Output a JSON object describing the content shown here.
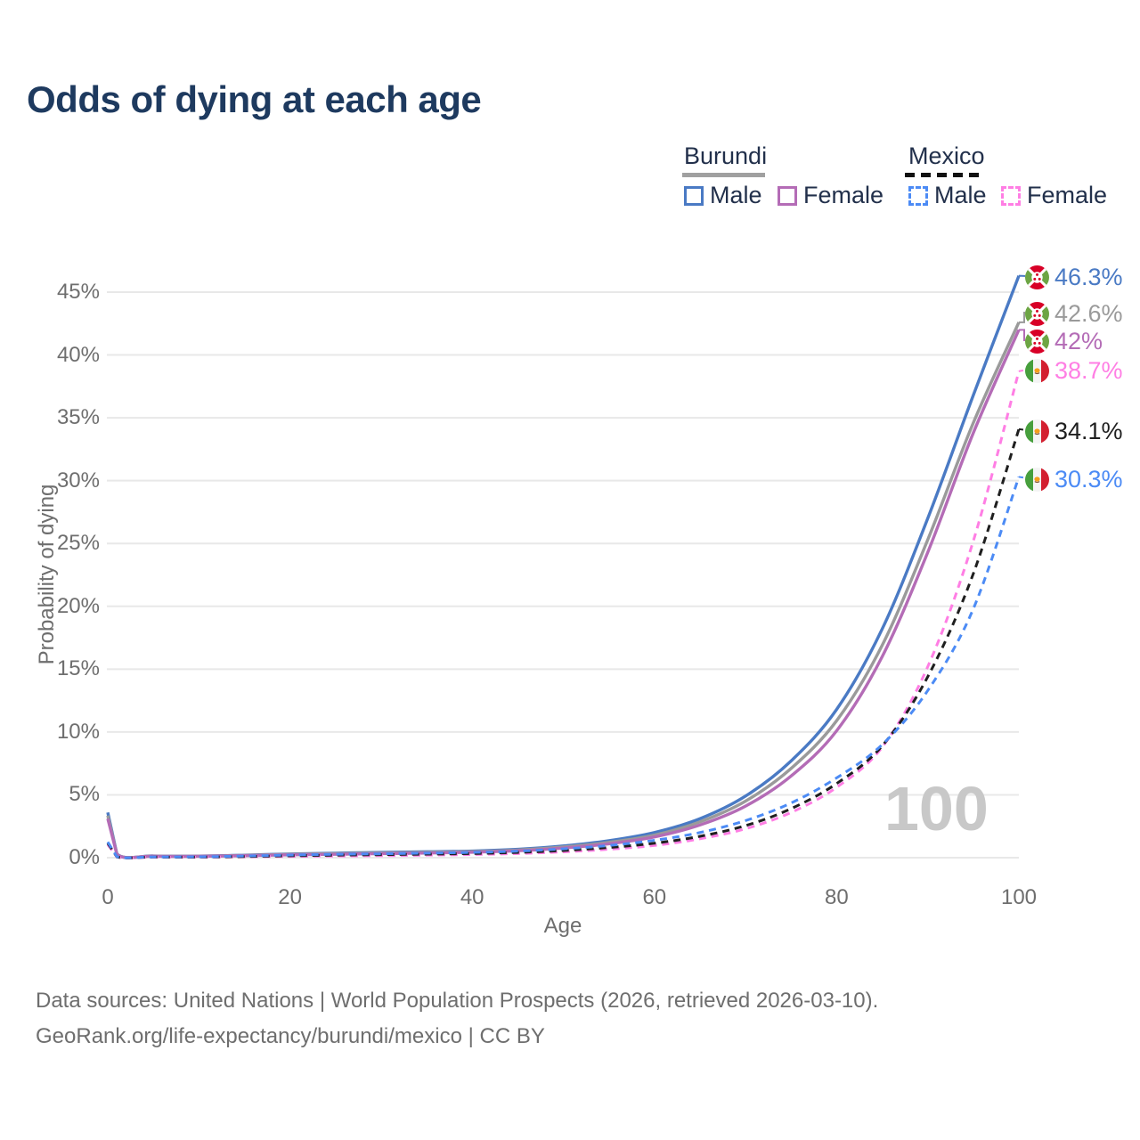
{
  "title": "Odds of dying at each age",
  "legend": {
    "groups": [
      {
        "country": "Burundi",
        "line_style": "solid",
        "items": [
          {
            "label": "Male",
            "color": "#4a7ac4"
          },
          {
            "label": "Female",
            "color": "#b46cb6"
          }
        ]
      },
      {
        "country": "Mexico",
        "line_style": "dashed",
        "items": [
          {
            "label": "Male",
            "color": "#4c8bf5"
          },
          {
            "label": "Female",
            "color": "#ff7ee4"
          }
        ]
      }
    ]
  },
  "axes": {
    "y": {
      "label": "Probability of dying",
      "ticks": [
        "0%",
        "5%",
        "10%",
        "15%",
        "20%",
        "25%",
        "30%",
        "35%",
        "40%",
        "45%"
      ]
    },
    "x": {
      "label": "Age",
      "ticks": [
        "0",
        "20",
        "40",
        "60",
        "80",
        "100"
      ]
    }
  },
  "watermark": "100",
  "footer": {
    "line1": "Data sources: United Nations | World Population Prospects (2026, retrieved 2026-03-10).",
    "line2": "GeoRank.org/life-expectancy/burundi/mexico | CC BY"
  },
  "chart_data": {
    "type": "line",
    "title": "Odds of dying at each age",
    "xlabel": "Age",
    "ylabel": "Probability of dying",
    "xlim": [
      0,
      100
    ],
    "ylim_pct": [
      0,
      47
    ],
    "grid": "horizontal",
    "legend_position": "top-right",
    "y_gridlines_pct": [
      0,
      5,
      10,
      15,
      20,
      25,
      30,
      35,
      40,
      45
    ],
    "x_ticks": [
      0,
      20,
      40,
      60,
      80,
      100
    ],
    "series": [
      {
        "name": "Burundi male",
        "country": "burundi",
        "sex": "male",
        "color": "#4a7ac4",
        "dash": false,
        "end_label": "46.3%",
        "points": [
          [
            0,
            3.6
          ],
          [
            1,
            0.3
          ],
          [
            5,
            0.14
          ],
          [
            10,
            0.13
          ],
          [
            15,
            0.2
          ],
          [
            20,
            0.3
          ],
          [
            25,
            0.36
          ],
          [
            30,
            0.42
          ],
          [
            35,
            0.47
          ],
          [
            40,
            0.53
          ],
          [
            45,
            0.67
          ],
          [
            50,
            0.93
          ],
          [
            55,
            1.35
          ],
          [
            60,
            2.0
          ],
          [
            65,
            3.1
          ],
          [
            70,
            4.9
          ],
          [
            75,
            7.7
          ],
          [
            80,
            11.8
          ],
          [
            85,
            18.2
          ],
          [
            90,
            27.0
          ],
          [
            95,
            36.8
          ],
          [
            100,
            46.3
          ]
        ]
      },
      {
        "name": "Burundi both sexes",
        "country": "burundi",
        "sex": "both",
        "color": "#9a9a9a",
        "dash": false,
        "end_label": "42.6%",
        "points": [
          [
            0,
            3.35
          ],
          [
            1,
            0.28
          ],
          [
            5,
            0.13
          ],
          [
            10,
            0.12
          ],
          [
            15,
            0.18
          ],
          [
            20,
            0.27
          ],
          [
            25,
            0.32
          ],
          [
            30,
            0.37
          ],
          [
            35,
            0.42
          ],
          [
            40,
            0.48
          ],
          [
            45,
            0.61
          ],
          [
            50,
            0.85
          ],
          [
            55,
            1.22
          ],
          [
            60,
            1.8
          ],
          [
            65,
            2.85
          ],
          [
            70,
            4.5
          ],
          [
            75,
            7.1
          ],
          [
            80,
            10.9
          ],
          [
            85,
            16.9
          ],
          [
            90,
            25.3
          ],
          [
            95,
            34.6
          ],
          [
            100,
            42.6
          ]
        ]
      },
      {
        "name": "Burundi female",
        "country": "burundi",
        "sex": "female",
        "color": "#b46cb6",
        "dash": false,
        "end_label": "42%",
        "points": [
          [
            0,
            3.1
          ],
          [
            1,
            0.26
          ],
          [
            5,
            0.12
          ],
          [
            10,
            0.11
          ],
          [
            15,
            0.16
          ],
          [
            20,
            0.23
          ],
          [
            25,
            0.27
          ],
          [
            30,
            0.32
          ],
          [
            35,
            0.37
          ],
          [
            40,
            0.43
          ],
          [
            45,
            0.55
          ],
          [
            50,
            0.77
          ],
          [
            55,
            1.1
          ],
          [
            60,
            1.65
          ],
          [
            65,
            2.6
          ],
          [
            70,
            4.1
          ],
          [
            75,
            6.5
          ],
          [
            80,
            10.1
          ],
          [
            85,
            16.0
          ],
          [
            90,
            24.3
          ],
          [
            95,
            33.8
          ],
          [
            100,
            42.0
          ]
        ]
      },
      {
        "name": "Mexico female",
        "country": "mexico",
        "sex": "female",
        "color": "#ff7ee4",
        "dash": true,
        "end_label": "38.7%",
        "points": [
          [
            0,
            1.05
          ],
          [
            1,
            0.06
          ],
          [
            5,
            0.04
          ],
          [
            10,
            0.04
          ],
          [
            15,
            0.07
          ],
          [
            20,
            0.1
          ],
          [
            25,
            0.13
          ],
          [
            30,
            0.16
          ],
          [
            35,
            0.2
          ],
          [
            40,
            0.25
          ],
          [
            45,
            0.33
          ],
          [
            50,
            0.46
          ],
          [
            55,
            0.67
          ],
          [
            60,
            0.97
          ],
          [
            65,
            1.5
          ],
          [
            70,
            2.3
          ],
          [
            75,
            3.6
          ],
          [
            80,
            5.6
          ],
          [
            85,
            8.8
          ],
          [
            90,
            15.2
          ],
          [
            95,
            25.2
          ],
          [
            100,
            38.7
          ]
        ]
      },
      {
        "name": "Mexico both sexes",
        "country": "mexico",
        "sex": "both",
        "color": "#1f1f1f",
        "dash": true,
        "end_label": "34.1%",
        "points": [
          [
            0,
            1.15
          ],
          [
            1,
            0.07
          ],
          [
            5,
            0.05
          ],
          [
            10,
            0.05
          ],
          [
            15,
            0.09
          ],
          [
            20,
            0.15
          ],
          [
            25,
            0.2
          ],
          [
            30,
            0.24
          ],
          [
            35,
            0.28
          ],
          [
            40,
            0.33
          ],
          [
            45,
            0.42
          ],
          [
            50,
            0.57
          ],
          [
            55,
            0.81
          ],
          [
            60,
            1.15
          ],
          [
            65,
            1.7
          ],
          [
            70,
            2.55
          ],
          [
            75,
            3.9
          ],
          [
            80,
            5.9
          ],
          [
            85,
            8.9
          ],
          [
            90,
            14.4
          ],
          [
            95,
            22.6
          ],
          [
            100,
            34.1
          ]
        ]
      },
      {
        "name": "Mexico male",
        "country": "mexico",
        "sex": "male",
        "color": "#4c8bf5",
        "dash": true,
        "end_label": "30.3%",
        "points": [
          [
            0,
            1.25
          ],
          [
            1,
            0.08
          ],
          [
            5,
            0.06
          ],
          [
            10,
            0.07
          ],
          [
            15,
            0.13
          ],
          [
            20,
            0.21
          ],
          [
            25,
            0.27
          ],
          [
            30,
            0.31
          ],
          [
            35,
            0.36
          ],
          [
            40,
            0.42
          ],
          [
            45,
            0.52
          ],
          [
            50,
            0.7
          ],
          [
            55,
            0.97
          ],
          [
            60,
            1.38
          ],
          [
            65,
            2.0
          ],
          [
            70,
            2.95
          ],
          [
            75,
            4.35
          ],
          [
            80,
            6.35
          ],
          [
            85,
            9.0
          ],
          [
            90,
            13.3
          ],
          [
            95,
            19.8
          ],
          [
            100,
            30.3
          ]
        ]
      }
    ]
  }
}
